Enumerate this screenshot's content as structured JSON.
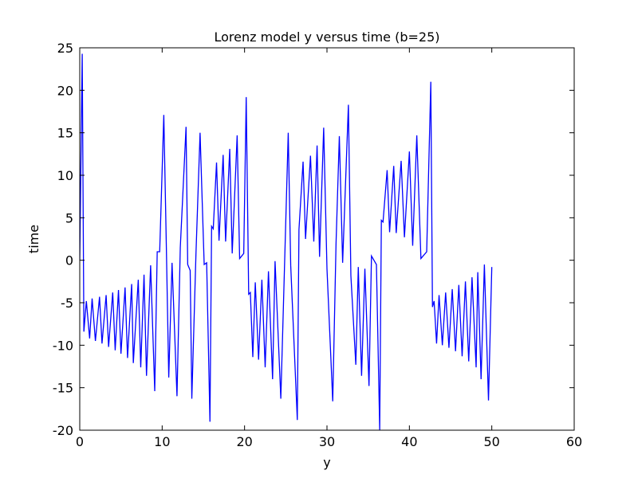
{
  "chart_data": {
    "type": "line",
    "title": "Lorenz model y versus time (b=25)",
    "x_label": "y",
    "y_label": "time",
    "color": "#0000ff",
    "xlim": [
      0,
      60
    ],
    "xticks": [
      0,
      10,
      20,
      30,
      40,
      50,
      60
    ],
    "ylim": [
      -20,
      25
    ],
    "yticks": [
      -20,
      -15,
      -10,
      -5,
      0,
      5,
      10,
      15,
      20,
      25
    ],
    "x": [
      0,
      0.3,
      0.5,
      0.8,
      1.2,
      1.5,
      1.9,
      2.4,
      2.7,
      3.2,
      3.5,
      4.0,
      4.3,
      4.7,
      5.0,
      5.5,
      5.8,
      6.3,
      6.5,
      7.1,
      7.4,
      7.8,
      8.1,
      8.6,
      9.1,
      9.4,
      9.7,
      10.2,
      10.5,
      10.8,
      11.2,
      11.8,
      12.2,
      12.9,
      13.1,
      13.4,
      13.6,
      14.1,
      14.6,
      15.1,
      15.4,
      15.8,
      16.0,
      16.2,
      16.6,
      16.9,
      17.4,
      17.7,
      18.2,
      18.5,
      19.1,
      19.4,
      19.9,
      20.2,
      20.5,
      20.7,
      21.0,
      21.3,
      21.7,
      22.1,
      22.5,
      22.9,
      23.4,
      23.7,
      24.4,
      25.3,
      25.6,
      26.4,
      26.6,
      27.1,
      27.4,
      28.0,
      28.4,
      28.8,
      29.1,
      29.6,
      30.0,
      30.7,
      31.1,
      31.5,
      31.9,
      32.6,
      32.9,
      33.5,
      33.8,
      34.2,
      34.6,
      35.1,
      35.4,
      36.0,
      36.4,
      36.6,
      36.8,
      37.3,
      37.6,
      38.1,
      38.4,
      39.0,
      39.4,
      40.0,
      40.4,
      40.9,
      41.4,
      42.1,
      42.6,
      42.8,
      43.0,
      43.3,
      43.6,
      44.0,
      44.4,
      44.8,
      45.2,
      45.6,
      46.0,
      46.4,
      46.8,
      47.2,
      47.6,
      48.1,
      48.3,
      48.7,
      49.1,
      49.6,
      50.0
    ],
    "values": [
      0,
      24.3,
      -8.4,
      -4.8,
      -9.2,
      -4.5,
      -9.5,
      -4.3,
      -9.8,
      -4.1,
      -10.2,
      -3.8,
      -10.6,
      -3.5,
      -11.0,
      -3.2,
      -11.5,
      -2.8,
      -12.1,
      -2.3,
      -12.6,
      -1.7,
      -13.6,
      -0.6,
      -15.4,
      1.0,
      1.0,
      17.1,
      2,
      -13.8,
      -0.3,
      -16,
      1.5,
      15.7,
      -0.5,
      -1.2,
      -16.3,
      0.7,
      15,
      -0.5,
      -0.3,
      -19,
      4,
      3.7,
      11.5,
      2.3,
      12.4,
      2.2,
      13.1,
      0.8,
      14.7,
      0.2,
      0.8,
      19.2,
      -4,
      -3.8,
      -11.4,
      -2.6,
      -11.7,
      -2.3,
      -12.6,
      -1.3,
      -14,
      -0.1,
      -16.3,
      15,
      -0.6,
      -18.8,
      3.6,
      11.6,
      2.5,
      12.3,
      2.2,
      13.5,
      0.4,
      15.6,
      -1,
      -16.6,
      2,
      14.6,
      -0.3,
      18.3,
      -1.8,
      -12.3,
      -0.8,
      -13.6,
      -1,
      -14.8,
      0.5,
      -0.5,
      -20,
      4.7,
      4.5,
      10.6,
      3.3,
      11.1,
      3.2,
      11.7,
      2.7,
      12.8,
      1.7,
      14.7,
      0.2,
      1,
      21,
      -5.5,
      -4.8,
      -9.8,
      -4.1,
      -10,
      -3.8,
      -10.3,
      -3.4,
      -10.7,
      -2.9,
      -11.3,
      -2.5,
      -11.9,
      -2,
      -12.6,
      -1.4,
      -14,
      -0.5,
      -16.5,
      -0.8
    ]
  }
}
